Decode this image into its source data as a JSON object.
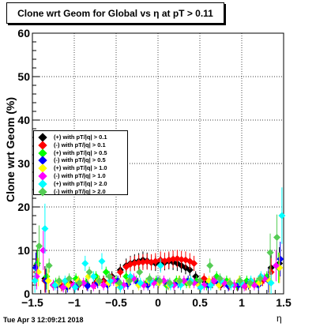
{
  "title": "Clone wrt Geom for Global vs   η at pT > 0.11",
  "footer": "Tue Apr  3 12:09:21 2018",
  "chart_data": {
    "type": "scatter",
    "xlabel": "η",
    "ylabel": "Clone wrt Geom (%)",
    "xlim": [
      -1.5,
      1.5
    ],
    "ylim": [
      0,
      60
    ],
    "xticks": [
      -1.5,
      -1,
      -0.5,
      0,
      0.5,
      1,
      1.5
    ],
    "xtick_labels": [
      "−1.5",
      "−1",
      "−0.5",
      "0",
      "0.5",
      "1",
      "1.5"
    ],
    "yticks": [
      0,
      10,
      20,
      30,
      40,
      50,
      60
    ],
    "ytick_labels": [
      "0",
      "10",
      "20",
      "30",
      "40",
      "50",
      "60"
    ],
    "grid": true,
    "legend_position": "left-middle",
    "series": [
      {
        "name": "(+) with pT/|q| > 0.1",
        "color": "#000000",
        "x": [
          -1.45,
          -1.35,
          -1.25,
          -1.15,
          -1.05,
          -0.95,
          -0.85,
          -0.75,
          -0.65,
          -0.55,
          -0.45,
          -0.38,
          -0.33,
          -0.28,
          -0.23,
          -0.18,
          -0.13,
          -0.08,
          -0.03,
          0.03,
          0.08,
          0.13,
          0.18,
          0.23,
          0.28,
          0.33,
          0.38,
          0.45,
          0.55,
          0.65,
          0.75,
          0.85,
          0.95,
          1.05,
          1.15,
          1.25,
          1.35,
          1.45
        ],
        "y": [
          6.5,
          3.5,
          2,
          1.8,
          2.5,
          2,
          2.2,
          2.5,
          3,
          4,
          5.5,
          6.5,
          7,
          7.3,
          7.5,
          7.8,
          7.6,
          7.2,
          7,
          7,
          7.2,
          7.5,
          7.3,
          7,
          6.5,
          6,
          5.5,
          4,
          3,
          2.5,
          2,
          2.2,
          1.8,
          2,
          2.5,
          3,
          6,
          7
        ]
      },
      {
        "name": "(-) with pT/|q| > 0.1",
        "color": "#ff0000",
        "x": [
          -1.45,
          -1.35,
          -1.25,
          -1.15,
          -1.05,
          -0.95,
          -0.85,
          -0.75,
          -0.65,
          -0.55,
          -0.45,
          -0.38,
          -0.33,
          -0.28,
          -0.23,
          -0.18,
          -0.13,
          -0.08,
          -0.03,
          0.03,
          0.08,
          0.13,
          0.18,
          0.23,
          0.28,
          0.33,
          0.38,
          0.43,
          0.55,
          0.65,
          0.75,
          0.85,
          0.95,
          1.05,
          1.15,
          1.25,
          1.35,
          1.45
        ],
        "y": [
          5,
          3,
          2,
          1.8,
          2.2,
          2,
          2,
          2.3,
          2.8,
          3.5,
          5,
          6.2,
          6.8,
          7,
          7.2,
          7.3,
          7.4,
          7.3,
          7.5,
          7.8,
          7.6,
          7.8,
          8,
          8.1,
          7.9,
          7.8,
          7.5,
          7,
          3.5,
          2.8,
          2.2,
          2,
          2,
          2,
          2.5,
          3,
          5,
          6
        ]
      },
      {
        "name": "(+) with pT/|q| > 0.5",
        "color": "#00ff00",
        "x": [
          -1.44,
          -1.33,
          -1.22,
          -1.1,
          -0.98,
          -0.86,
          -0.74,
          -0.62,
          -0.5,
          -0.38,
          -0.26,
          -0.14,
          -0.02,
          0.1,
          0.22,
          0.34,
          0.46,
          0.58,
          0.7,
          0.82,
          0.94,
          1.06,
          1.18,
          1.3,
          1.44
        ],
        "y": [
          7,
          4,
          2.5,
          2,
          3.5,
          2.5,
          4,
          5,
          3,
          4,
          3,
          2.5,
          3,
          2,
          3,
          2.5,
          3,
          2,
          4,
          3,
          2,
          3,
          2.5,
          4,
          6
        ]
      },
      {
        "name": "(-) with pT/|q| > 0.5",
        "color": "#0000ff",
        "x": [
          -1.46,
          -1.34,
          -1.2,
          -1.08,
          -0.96,
          -0.84,
          -0.72,
          -0.6,
          -0.48,
          -0.36,
          -0.24,
          -0.12,
          0,
          0.12,
          0.24,
          0.36,
          0.48,
          0.6,
          0.72,
          0.84,
          0.96,
          1.08,
          1.2,
          1.32,
          1.46
        ],
        "y": [
          6,
          3,
          2,
          1.5,
          2,
          1.8,
          2.5,
          2,
          3,
          2.2,
          2.5,
          2,
          2.8,
          2.2,
          2.5,
          3,
          2.2,
          2,
          2.5,
          1.8,
          2,
          2.2,
          2,
          3,
          8
        ]
      },
      {
        "name": "(+) with pT/|q| > 1.0",
        "color": "#ffff00",
        "x": [
          -1.43,
          -1.31,
          -1.19,
          -1.07,
          -0.95,
          -0.83,
          -0.71,
          -0.59,
          -0.47,
          -0.35,
          -0.23,
          -0.11,
          0.01,
          0.13,
          0.25,
          0.37,
          0.49,
          0.61,
          0.73,
          0.85,
          0.97,
          1.09,
          1.21,
          1.33,
          1.45
        ],
        "y": [
          5,
          3,
          2.5,
          2,
          3,
          4,
          3,
          2.5,
          2,
          3,
          2,
          3,
          2.5,
          2,
          3,
          2.5,
          2,
          3,
          2,
          2.5,
          3,
          2,
          2.5,
          3,
          6
        ]
      },
      {
        "name": "(-) with pT/|q| > 1.0",
        "color": "#ff00ff",
        "x": [
          -1.45,
          -1.37,
          -1.25,
          -1.13,
          -1.01,
          -0.89,
          -0.77,
          -0.65,
          -0.53,
          -0.41,
          -0.29,
          -0.17,
          -0.05,
          0.07,
          0.19,
          0.31,
          0.43,
          0.55,
          0.67,
          0.79,
          0.91,
          1.03,
          1.15,
          1.27,
          1.41
        ],
        "y": [
          4,
          10,
          2,
          1.5,
          2,
          2.5,
          1.8,
          2,
          3,
          2,
          3.5,
          2,
          2.5,
          3,
          2,
          3,
          2.5,
          2,
          3,
          2.5,
          2,
          1.8,
          2,
          3.5,
          6.5
        ]
      },
      {
        "name": "(+) with pT/|q| > 2.0",
        "color": "#00ffff",
        "x": [
          -1.47,
          -1.35,
          -1.23,
          -1.11,
          -0.99,
          -0.87,
          -0.77,
          -0.67,
          -0.57,
          -0.45,
          -0.33,
          -0.21,
          -0.09,
          0.03,
          0.15,
          0.27,
          0.39,
          0.51,
          0.63,
          0.75,
          0.87,
          0.99,
          1.11,
          1.23,
          1.35,
          1.48
        ],
        "y": [
          3,
          15,
          2,
          3,
          1.5,
          7,
          4,
          7.5,
          3,
          1.5,
          4,
          2.5,
          3,
          6.5,
          2,
          2,
          3,
          1.5,
          2,
          3,
          2,
          2.5,
          3,
          4,
          2.5,
          18
        ]
      },
      {
        "name": "(-) with pT/|q| > 2.0",
        "color": "#55cc55",
        "x": [
          -1.42,
          -1.3,
          -1.18,
          -1.06,
          -0.94,
          -0.82,
          -0.7,
          -0.58,
          -0.46,
          -0.34,
          -0.22,
          -0.1,
          0.02,
          0.14,
          0.26,
          0.38,
          0.5,
          0.62,
          0.74,
          0.86,
          0.98,
          1.1,
          1.22,
          1.34,
          1.42
        ],
        "y": [
          11,
          6.5,
          3,
          3.5,
          2.5,
          5,
          3,
          4,
          2.5,
          3,
          5,
          3.5,
          3,
          2.5,
          3,
          2.5,
          3,
          6.5,
          3.5,
          2.5,
          3,
          2.5,
          3.5,
          9.5,
          13
        ]
      }
    ]
  }
}
